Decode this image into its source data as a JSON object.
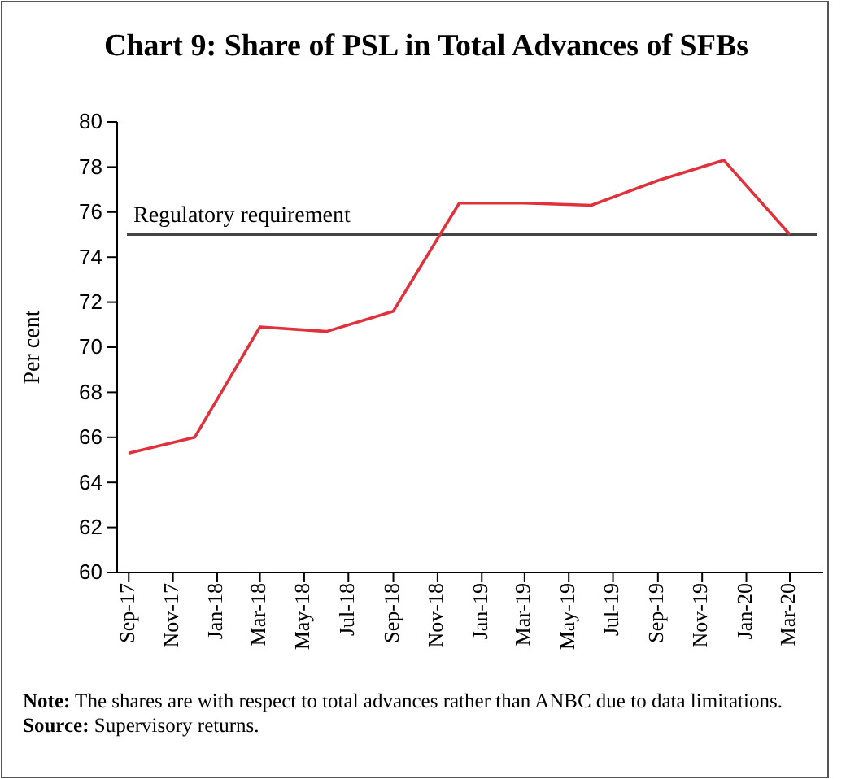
{
  "chart_data": {
    "type": "line",
    "title": "Chart 9: Share of PSL in Total Advances of SFBs",
    "ylabel": "Per cent",
    "x": [
      "2017-09",
      "2017-12",
      "2018-03",
      "2018-06",
      "2018-09",
      "2018-12",
      "2019-03",
      "2019-06",
      "2019-09",
      "2019-12",
      "2020-03"
    ],
    "series": [
      {
        "color": "#e0323c",
        "values": [
          65.3,
          66.0,
          70.9,
          70.7,
          71.6,
          76.4,
          76.4,
          76.3,
          77.4,
          78.3,
          75.0
        ]
      }
    ],
    "xlim": [
      "2017-08-16",
      "2020-04-16"
    ],
    "xticks": [
      {
        "value": "2017-09",
        "label": "Sep-17"
      },
      {
        "value": "2017-11",
        "label": "Nov-17"
      },
      {
        "value": "2018-01",
        "label": "Jan-18"
      },
      {
        "value": "2018-03",
        "label": "Mar-18"
      },
      {
        "value": "2018-05",
        "label": "May-18"
      },
      {
        "value": "2018-07",
        "label": "Jul-18"
      },
      {
        "value": "2018-09",
        "label": "Sep-18"
      },
      {
        "value": "2018-11",
        "label": "Nov-18"
      },
      {
        "value": "2019-01",
        "label": "Jan-19"
      },
      {
        "value": "2019-03",
        "label": "Mar-19"
      },
      {
        "value": "2019-05",
        "label": "May-19"
      },
      {
        "value": "2019-07",
        "label": "Jul-19"
      },
      {
        "value": "2019-09",
        "label": "Sep-19"
      },
      {
        "value": "2019-11",
        "label": "Nov-19"
      },
      {
        "value": "2020-01",
        "label": "Jan-20"
      },
      {
        "value": "2020-03",
        "label": "Mar-20"
      }
    ],
    "ylim": [
      60,
      80
    ],
    "yticks": [
      60,
      62,
      64,
      66,
      68,
      70,
      72,
      74,
      76,
      78,
      80
    ],
    "ref_lines": [
      {
        "axis": "y",
        "value": 75,
        "label": "Regulatory requirement",
        "color": "#444444",
        "line_style": "solid"
      }
    ],
    "annotations": [
      "Note: The shares are with respect to total advances rather than ANBC due to data limitations.",
      "Source: Supervisory returns."
    ],
    "grid": false,
    "marker": "none",
    "line_style": "solid"
  }
}
